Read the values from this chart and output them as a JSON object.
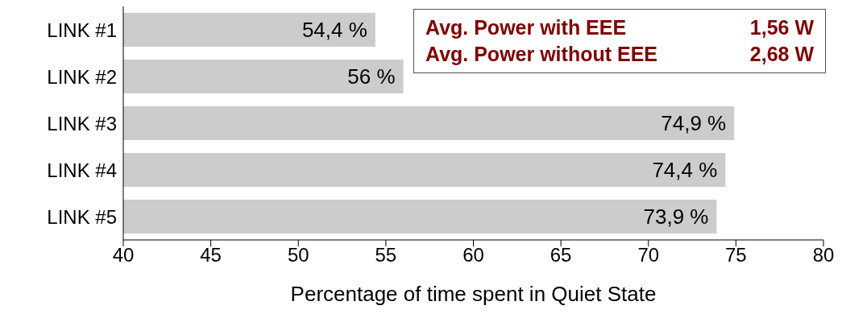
{
  "chart_data": {
    "type": "bar",
    "orientation": "horizontal",
    "xlabel": "Percentage of time spent in Quiet State",
    "categories": [
      "LINK #1",
      "LINK #2",
      "LINK #3",
      "LINK #4",
      "LINK #5"
    ],
    "values": [
      54.4,
      56,
      74.9,
      74.4,
      73.9
    ],
    "value_labels": [
      "54,4 %",
      "56 %",
      "74,9 %",
      "74,4 %",
      "73,9 %"
    ],
    "color": "#cccccc",
    "xlim": [
      40,
      80
    ],
    "xticks": [
      40,
      45,
      50,
      55,
      60,
      65,
      70,
      75,
      80
    ],
    "annotations": [
      "Avg. Power with EEE\t1,56 W",
      "Avg. Power without EEE\t2,68 W"
    ],
    "grid": false
  }
}
